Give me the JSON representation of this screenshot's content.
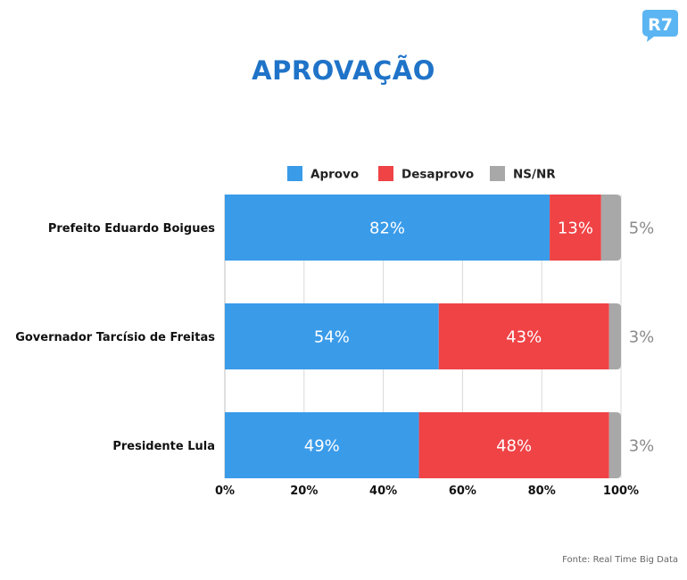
{
  "title": "APROVAÇÃO",
  "logo_text": "R7",
  "source": "Fonte: Real Time Big Data",
  "colors": {
    "title": "#1f73c8",
    "aprovo": "#3a9be9",
    "desaprovo": "#ef4346",
    "nsnr": "#a8a8a8",
    "logo": "#5bb5f2"
  },
  "chart_data": {
    "type": "bar",
    "orientation": "horizontal",
    "stacked": true,
    "categories": [
      "Prefeito Eduardo Boigues",
      "Governador Tarcísio de Freitas",
      "Presidente Lula"
    ],
    "series": [
      {
        "name": "Aprovo",
        "values": [
          82,
          54,
          49
        ],
        "labels": [
          "82%",
          "54%",
          "49%"
        ]
      },
      {
        "name": "Desaprovo",
        "values": [
          13,
          43,
          48
        ],
        "labels": [
          "13%",
          "43%",
          "48%"
        ]
      },
      {
        "name": "NS/NR",
        "values": [
          5,
          3,
          3
        ],
        "labels": [
          "5%",
          "3%",
          "3%"
        ]
      }
    ],
    "xlim": [
      0,
      100
    ],
    "xticks": [
      "0%",
      "20%",
      "40%",
      "60%",
      "80%",
      "100%"
    ],
    "grid": true,
    "legend": "top"
  }
}
